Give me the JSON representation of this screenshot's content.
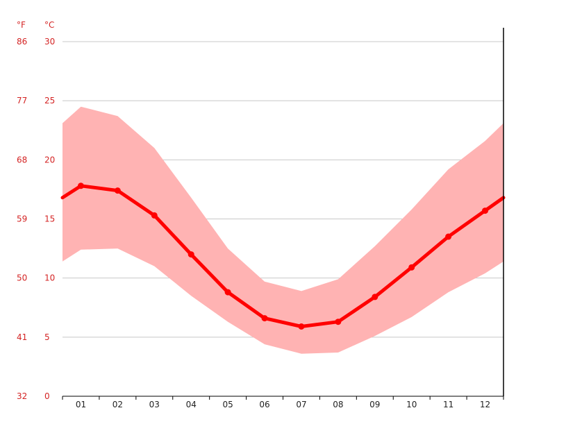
{
  "chart_data": {
    "type": "line",
    "title": "",
    "xlabel": "",
    "ylabel": "",
    "unit_f": "°F",
    "unit_c": "°C",
    "categories": [
      "01",
      "02",
      "03",
      "04",
      "05",
      "06",
      "07",
      "08",
      "09",
      "10",
      "11",
      "12"
    ],
    "yticks_c": [
      "0",
      "5",
      "10",
      "15",
      "20",
      "25",
      "30"
    ],
    "yticks_f": [
      "32",
      "41",
      "50",
      "59",
      "68",
      "77",
      "86"
    ],
    "ylim": [
      0,
      30
    ],
    "grid": true,
    "series": [
      {
        "role": "mean",
        "values": [
          17.8,
          17.4,
          15.3,
          12.0,
          8.8,
          6.6,
          5.9,
          6.3,
          8.4,
          10.9,
          13.5,
          15.7
        ]
      },
      {
        "role": "max",
        "values": [
          24.5,
          23.7,
          21.0,
          16.8,
          12.5,
          9.7,
          8.9,
          9.9,
          12.7,
          15.8,
          19.2,
          21.6
        ]
      },
      {
        "role": "min",
        "values": [
          12.4,
          12.5,
          11.0,
          8.5,
          6.3,
          4.4,
          3.6,
          3.7,
          5.1,
          6.7,
          8.8,
          10.4
        ]
      }
    ],
    "edge_values": {
      "mean": 16.8,
      "max": 23.1,
      "min": 11.4
    },
    "colors": {
      "line": "#ff0000",
      "band": "#ffb3b3",
      "grid": "#c8c8c8",
      "axis": "#000000",
      "ytick": "#d42424",
      "xtick": "#222222"
    }
  }
}
